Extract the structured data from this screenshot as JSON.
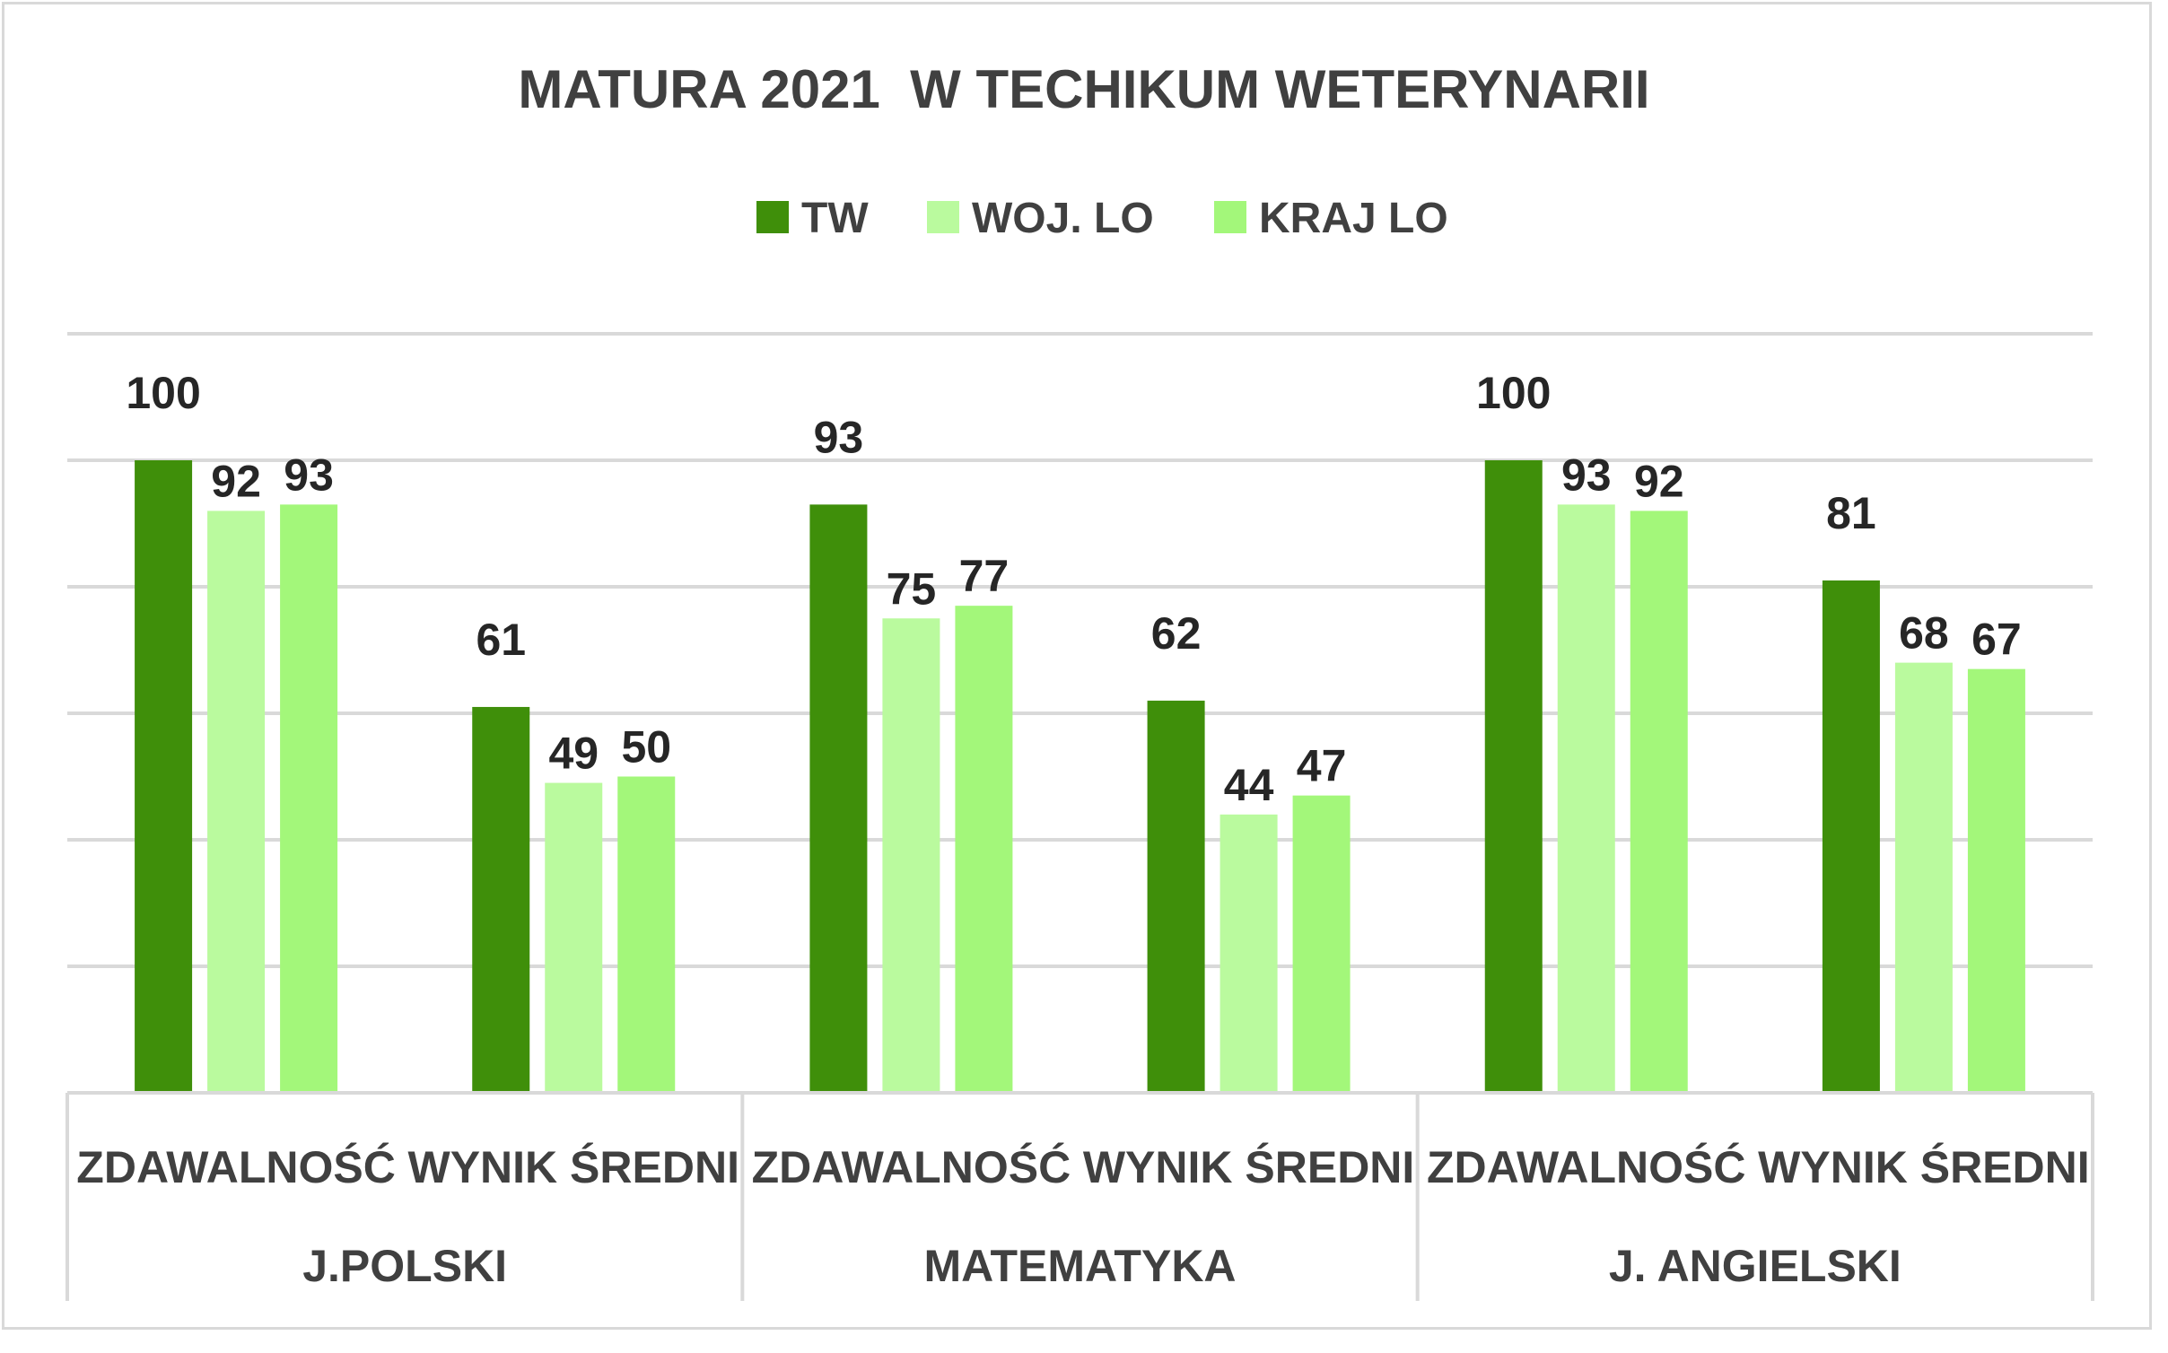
{
  "chart_data": {
    "type": "bar",
    "title": "MATURA 2021  W TECHIKUM WETERYNARII",
    "groups": [
      "J.POLSKI",
      "MATEMATYKA",
      "J. ANGIELSKI"
    ],
    "categories": [
      "ZDAWALNOŚĆ",
      "WYNIK ŚREDNI",
      "ZDAWALNOŚĆ",
      "WYNIK ŚREDNI",
      "ZDAWALNOŚĆ",
      "WYNIK ŚREDNI"
    ],
    "series": [
      {
        "name": "TW",
        "color": "#3f8f0a",
        "values": [
          100,
          61,
          93,
          62,
          100,
          81
        ]
      },
      {
        "name": "WOJ. LO",
        "color": "#bafa9e",
        "values": [
          92,
          49,
          75,
          44,
          93,
          68
        ]
      },
      {
        "name": "KRAJ LO",
        "color": "#a3f77a",
        "values": [
          93,
          50,
          77,
          47,
          92,
          67
        ]
      }
    ],
    "ylim": [
      0,
      120
    ],
    "grid": true,
    "legend": "top-center",
    "xlabel": "",
    "ylabel": ""
  }
}
